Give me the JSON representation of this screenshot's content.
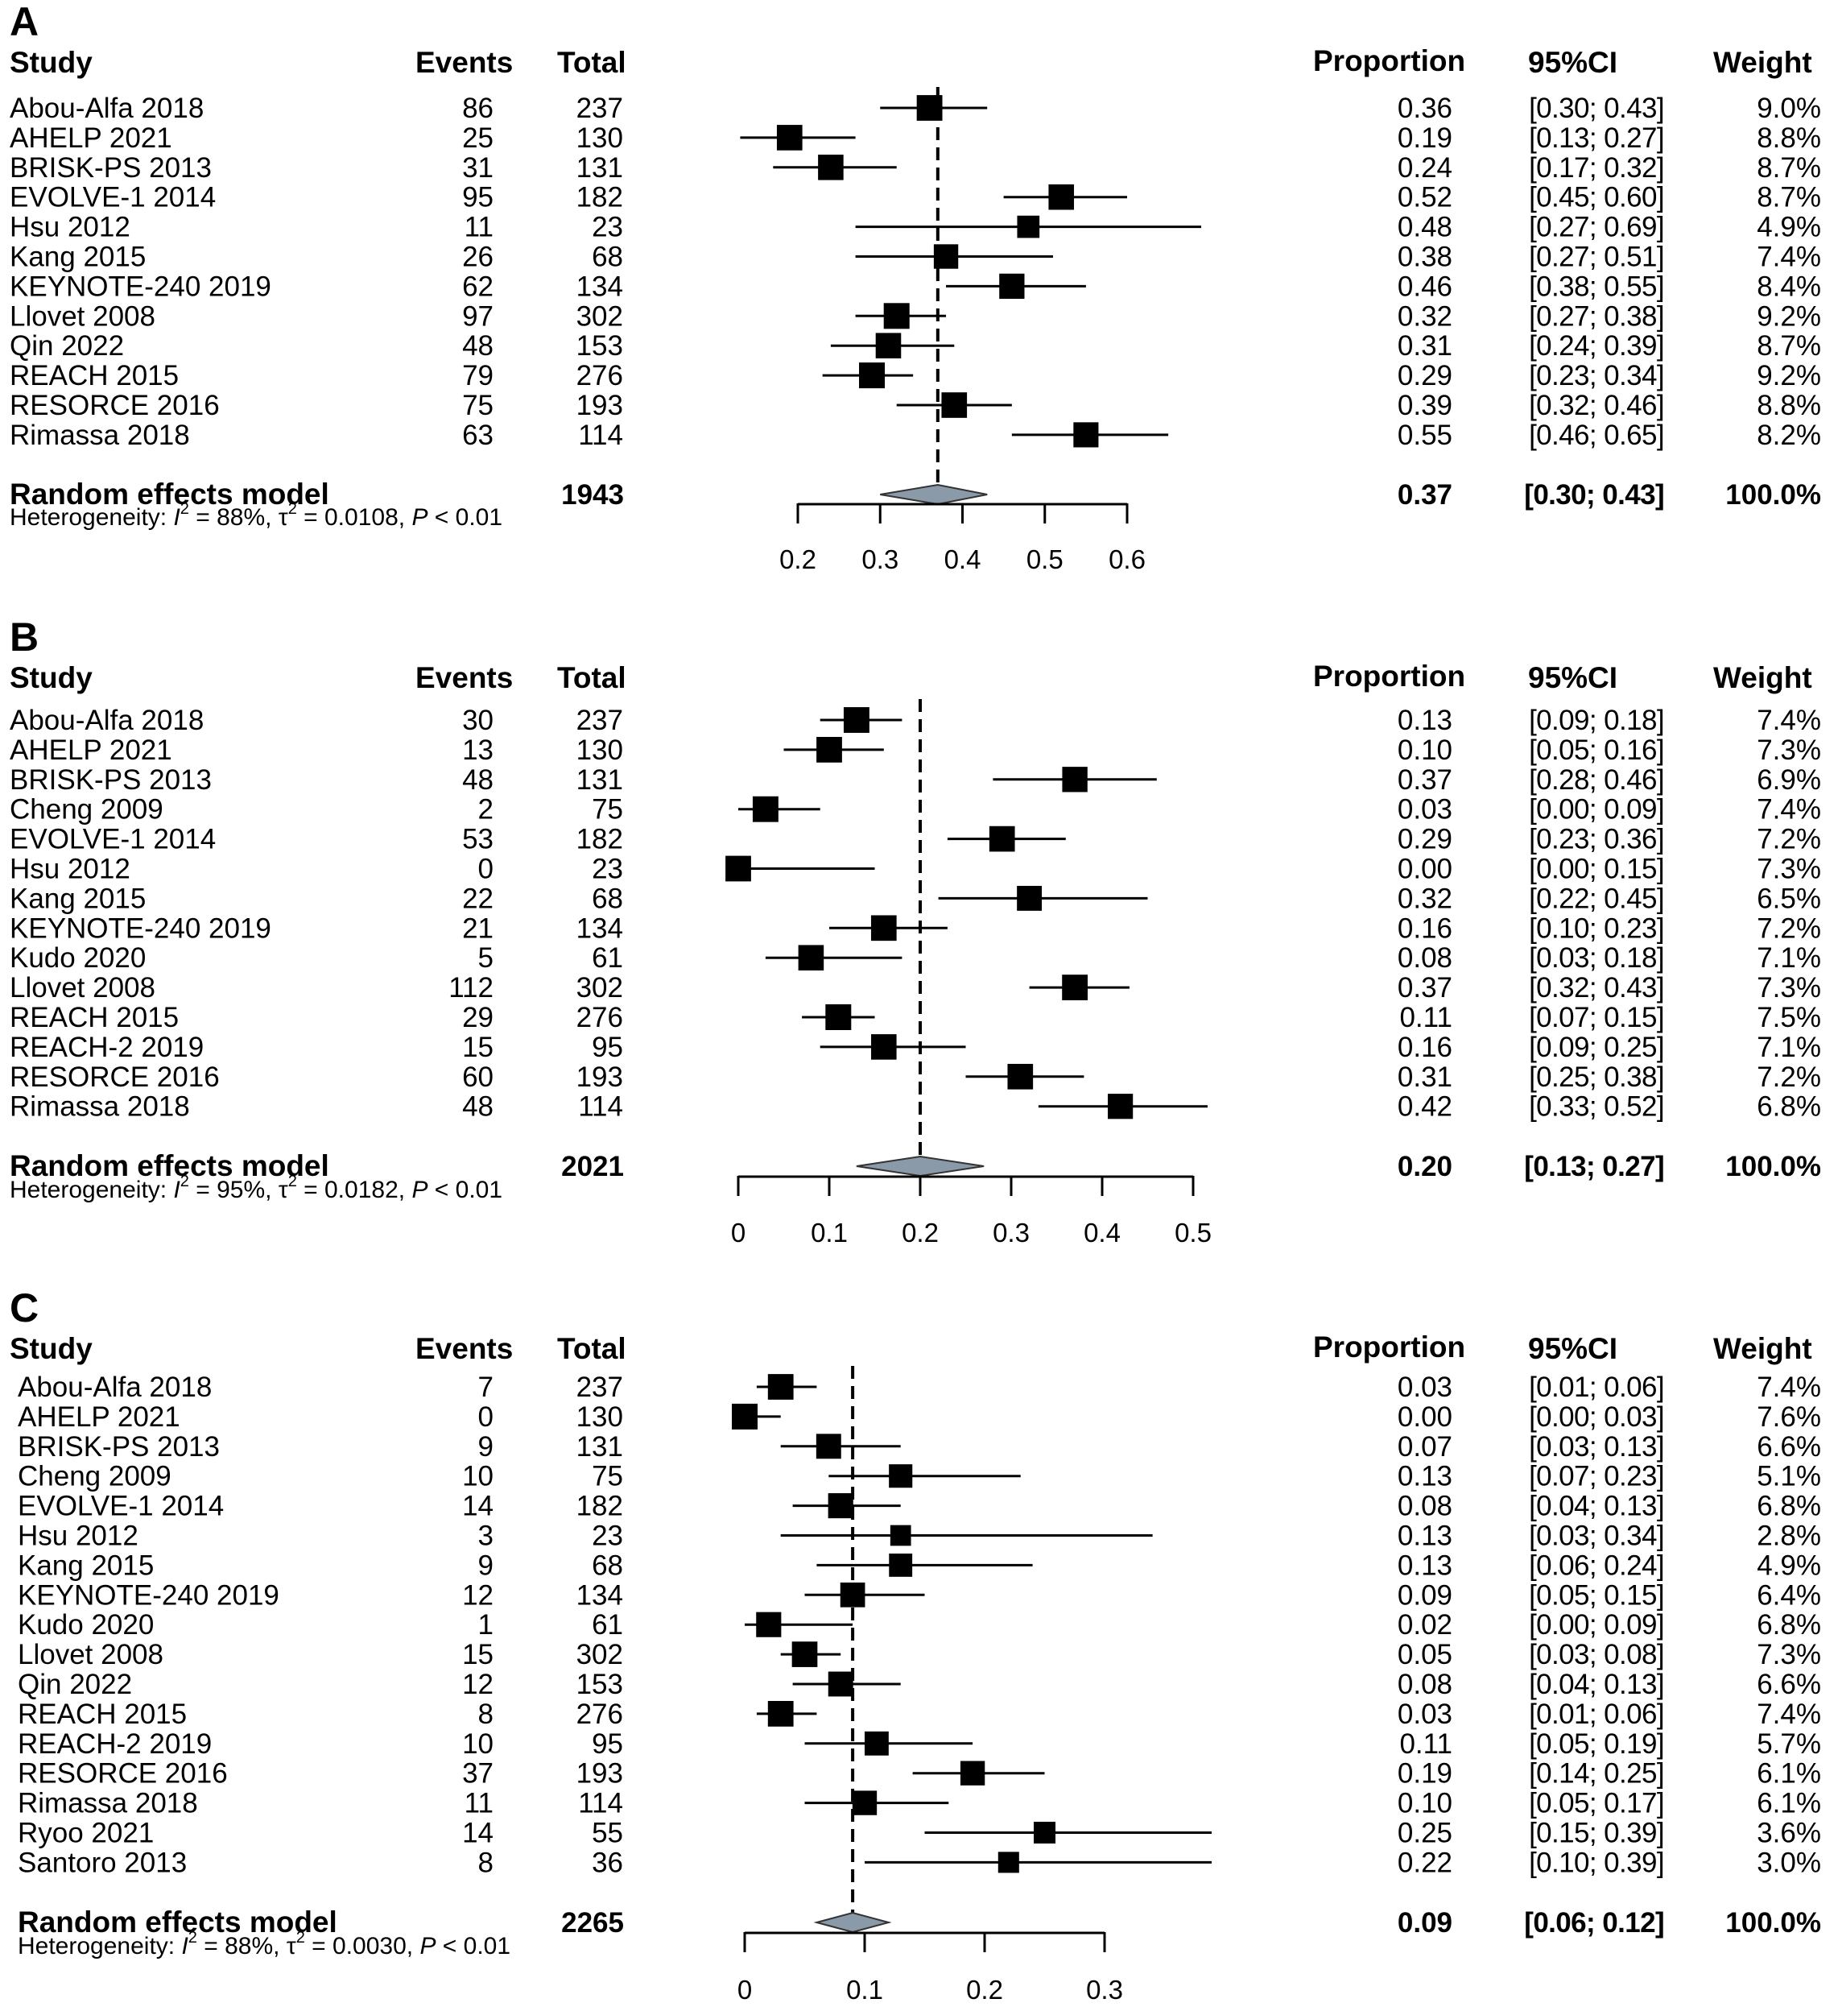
{
  "headers": {
    "study": "Study",
    "events": "Events",
    "total": "Total",
    "proportion": "Proportion",
    "ci": "95%CI",
    "weight": "Weight"
  },
  "chart_data": [
    {
      "type": "forest",
      "panel_label": "A",
      "x_ticks": [
        0.2,
        0.3,
        0.4,
        0.5,
        0.6
      ],
      "x_tick_labels": [
        "0.2",
        "0.3",
        "0.4",
        "0.5",
        "0.6"
      ],
      "xlim": [
        0.2,
        0.6
      ],
      "pooled_reference": 0.37,
      "studies": [
        {
          "study": "Abou-Alfa 2018",
          "events": "86",
          "total": "237",
          "proportion": 0.36,
          "lower": 0.3,
          "upper": 0.43,
          "prop_label": "0.36",
          "ci_label": "[0.30; 0.43]",
          "weight": 9.0,
          "weight_label": "9.0%"
        },
        {
          "study": "AHELP 2021",
          "events": "25",
          "total": "130",
          "proportion": 0.19,
          "lower": 0.13,
          "upper": 0.27,
          "prop_label": "0.19",
          "ci_label": "[0.13; 0.27]",
          "weight": 8.8,
          "weight_label": "8.8%"
        },
        {
          "study": "BRISK-PS 2013",
          "events": "31",
          "total": "131",
          "proportion": 0.24,
          "lower": 0.17,
          "upper": 0.32,
          "prop_label": "0.24",
          "ci_label": "[0.17; 0.32]",
          "weight": 8.7,
          "weight_label": "8.7%"
        },
        {
          "study": "EVOLVE-1 2014",
          "events": "95",
          "total": "182",
          "proportion": 0.52,
          "lower": 0.45,
          "upper": 0.6,
          "prop_label": "0.52",
          "ci_label": "[0.45; 0.60]",
          "weight": 8.7,
          "weight_label": "8.7%"
        },
        {
          "study": "Hsu 2012",
          "events": "11",
          "total": "23",
          "proportion": 0.48,
          "lower": 0.27,
          "upper": 0.69,
          "prop_label": "0.48",
          "ci_label": "[0.27; 0.69]",
          "weight": 4.9,
          "weight_label": "4.9%"
        },
        {
          "study": "Kang 2015",
          "events": "26",
          "total": "68",
          "proportion": 0.38,
          "lower": 0.27,
          "upper": 0.51,
          "prop_label": "0.38",
          "ci_label": "[0.27; 0.51]",
          "weight": 7.4,
          "weight_label": "7.4%"
        },
        {
          "study": "KEYNOTE-240 2019",
          "events": "62",
          "total": "134",
          "proportion": 0.46,
          "lower": 0.38,
          "upper": 0.55,
          "prop_label": "0.46",
          "ci_label": "[0.38; 0.55]",
          "weight": 8.4,
          "weight_label": "8.4%"
        },
        {
          "study": "Llovet 2008",
          "events": "97",
          "total": "302",
          "proportion": 0.32,
          "lower": 0.27,
          "upper": 0.38,
          "prop_label": "0.32",
          "ci_label": "[0.27; 0.38]",
          "weight": 9.2,
          "weight_label": "9.2%"
        },
        {
          "study": "Qin 2022",
          "events": "48",
          "total": "153",
          "proportion": 0.31,
          "lower": 0.24,
          "upper": 0.39,
          "prop_label": "0.31",
          "ci_label": "[0.24; 0.39]",
          "weight": 8.7,
          "weight_label": "8.7%"
        },
        {
          "study": "REACH 2015",
          "events": "79",
          "total": "276",
          "proportion": 0.29,
          "lower": 0.23,
          "upper": 0.34,
          "prop_label": "0.29",
          "ci_label": "[0.23; 0.34]",
          "weight": 9.2,
          "weight_label": "9.2%"
        },
        {
          "study": "RESORCE 2016",
          "events": "75",
          "total": "193",
          "proportion": 0.39,
          "lower": 0.32,
          "upper": 0.46,
          "prop_label": "0.39",
          "ci_label": "[0.32; 0.46]",
          "weight": 8.8,
          "weight_label": "8.8%"
        },
        {
          "study": "Rimassa 2018",
          "events": "63",
          "total": "114",
          "proportion": 0.55,
          "lower": 0.46,
          "upper": 0.65,
          "prop_label": "0.55",
          "ci_label": "[0.46; 0.65]",
          "weight": 8.2,
          "weight_label": "8.2%"
        }
      ],
      "summary": {
        "label": "Random effects model",
        "total": "1943",
        "proportion": 0.37,
        "lower": 0.3,
        "upper": 0.43,
        "prop_label": "0.37",
        "ci_label": "[0.30; 0.43]",
        "weight_label": "100.0%",
        "het_prefix": "Heterogeneity: ",
        "i2_symbol": "I",
        "i2_sup": "2",
        "i2_value": " = 88%, ",
        "tau_symbol": "τ",
        "tau_sup": "2",
        "tau_value": " = 0.0108, ",
        "p_symbol": "P",
        "p_value": " < 0.01"
      }
    },
    {
      "type": "forest",
      "panel_label": "B",
      "x_ticks": [
        0,
        0.1,
        0.2,
        0.3,
        0.4,
        0.5
      ],
      "x_tick_labels": [
        "0",
        "0.1",
        "0.2",
        "0.3",
        "0.4",
        "0.5"
      ],
      "xlim": [
        0,
        0.5
      ],
      "pooled_reference": 0.2,
      "studies": [
        {
          "study": "Abou-Alfa 2018",
          "events": "30",
          "total": "237",
          "proportion": 0.13,
          "lower": 0.09,
          "upper": 0.18,
          "prop_label": "0.13",
          "ci_label": "[0.09; 0.18]",
          "weight": 7.4,
          "weight_label": "7.4%"
        },
        {
          "study": "AHELP 2021",
          "events": "13",
          "total": "130",
          "proportion": 0.1,
          "lower": 0.05,
          "upper": 0.16,
          "prop_label": "0.10",
          "ci_label": "[0.05; 0.16]",
          "weight": 7.3,
          "weight_label": "7.3%"
        },
        {
          "study": "BRISK-PS 2013",
          "events": "48",
          "total": "131",
          "proportion": 0.37,
          "lower": 0.28,
          "upper": 0.46,
          "prop_label": "0.37",
          "ci_label": "[0.28; 0.46]",
          "weight": 6.9,
          "weight_label": "6.9%"
        },
        {
          "study": "Cheng 2009",
          "events": "2",
          "total": "75",
          "proportion": 0.03,
          "lower": 0.0,
          "upper": 0.09,
          "prop_label": "0.03",
          "ci_label": "[0.00; 0.09]",
          "weight": 7.4,
          "weight_label": "7.4%"
        },
        {
          "study": "EVOLVE-1 2014",
          "events": "53",
          "total": "182",
          "proportion": 0.29,
          "lower": 0.23,
          "upper": 0.36,
          "prop_label": "0.29",
          "ci_label": "[0.23; 0.36]",
          "weight": 7.2,
          "weight_label": "7.2%"
        },
        {
          "study": "Hsu 2012",
          "events": "0",
          "total": "23",
          "proportion": 0.0,
          "lower": 0.0,
          "upper": 0.15,
          "prop_label": "0.00",
          "ci_label": "[0.00; 0.15]",
          "weight": 7.3,
          "weight_label": "7.3%"
        },
        {
          "study": "Kang 2015",
          "events": "22",
          "total": "68",
          "proportion": 0.32,
          "lower": 0.22,
          "upper": 0.45,
          "prop_label": "0.32",
          "ci_label": "[0.22; 0.45]",
          "weight": 6.5,
          "weight_label": "6.5%"
        },
        {
          "study": "KEYNOTE-240 2019",
          "events": "21",
          "total": "134",
          "proportion": 0.16,
          "lower": 0.1,
          "upper": 0.23,
          "prop_label": "0.16",
          "ci_label": "[0.10; 0.23]",
          "weight": 7.2,
          "weight_label": "7.2%"
        },
        {
          "study": "Kudo 2020",
          "events": "5",
          "total": "61",
          "proportion": 0.08,
          "lower": 0.03,
          "upper": 0.18,
          "prop_label": "0.08",
          "ci_label": "[0.03; 0.18]",
          "weight": 7.1,
          "weight_label": "7.1%"
        },
        {
          "study": "Llovet 2008",
          "events": "112",
          "total": "302",
          "proportion": 0.37,
          "lower": 0.32,
          "upper": 0.43,
          "prop_label": "0.37",
          "ci_label": "[0.32; 0.43]",
          "weight": 7.3,
          "weight_label": "7.3%"
        },
        {
          "study": "REACH 2015",
          "events": "29",
          "total": "276",
          "proportion": 0.11,
          "lower": 0.07,
          "upper": 0.15,
          "prop_label": "0.11",
          "ci_label": "[0.07; 0.15]",
          "weight": 7.5,
          "weight_label": "7.5%"
        },
        {
          "study": "REACH-2 2019",
          "events": "15",
          "total": "95",
          "proportion": 0.16,
          "lower": 0.09,
          "upper": 0.25,
          "prop_label": "0.16",
          "ci_label": "[0.09; 0.25]",
          "weight": 7.1,
          "weight_label": "7.1%"
        },
        {
          "study": "RESORCE 2016",
          "events": "60",
          "total": "193",
          "proportion": 0.31,
          "lower": 0.25,
          "upper": 0.38,
          "prop_label": "0.31",
          "ci_label": "[0.25; 0.38]",
          "weight": 7.2,
          "weight_label": "7.2%"
        },
        {
          "study": "Rimassa 2018",
          "events": "48",
          "total": "114",
          "proportion": 0.42,
          "lower": 0.33,
          "upper": 0.52,
          "prop_label": "0.42",
          "ci_label": "[0.33; 0.52]",
          "weight": 6.8,
          "weight_label": "6.8%"
        }
      ],
      "summary": {
        "label": "Random effects model",
        "total": "2021",
        "proportion": 0.2,
        "lower": 0.13,
        "upper": 0.27,
        "prop_label": "0.20",
        "ci_label": "[0.13; 0.27]",
        "weight_label": "100.0%",
        "het_prefix": "Heterogeneity: ",
        "i2_symbol": "I",
        "i2_sup": "2",
        "i2_value": " = 95%, ",
        "tau_symbol": "τ",
        "tau_sup": "2",
        "tau_value": " = 0.0182, ",
        "p_symbol": "P",
        "p_value": " < 0.01"
      }
    },
    {
      "type": "forest",
      "panel_label": "C",
      "x_ticks": [
        0,
        0.1,
        0.2,
        0.3
      ],
      "x_tick_labels": [
        "0",
        "0.1",
        "0.2",
        "0.3"
      ],
      "xlim": [
        0,
        0.3
      ],
      "pooled_reference": 0.09,
      "studies": [
        {
          "study": "Abou-Alfa 2018",
          "events": "7",
          "total": "237",
          "proportion": 0.03,
          "lower": 0.01,
          "upper": 0.06,
          "prop_label": "0.03",
          "ci_label": "[0.01; 0.06]",
          "weight": 7.4,
          "weight_label": "7.4%"
        },
        {
          "study": "AHELP 2021",
          "events": "0",
          "total": "130",
          "proportion": 0.0,
          "lower": 0.0,
          "upper": 0.03,
          "prop_label": "0.00",
          "ci_label": "[0.00; 0.03]",
          "weight": 7.6,
          "weight_label": "7.6%"
        },
        {
          "study": "BRISK-PS 2013",
          "events": "9",
          "total": "131",
          "proportion": 0.07,
          "lower": 0.03,
          "upper": 0.13,
          "prop_label": "0.07",
          "ci_label": "[0.03; 0.13]",
          "weight": 6.6,
          "weight_label": "6.6%"
        },
        {
          "study": "Cheng 2009",
          "events": "10",
          "total": "75",
          "proportion": 0.13,
          "lower": 0.07,
          "upper": 0.23,
          "prop_label": "0.13",
          "ci_label": "[0.07; 0.23]",
          "weight": 5.1,
          "weight_label": "5.1%"
        },
        {
          "study": "EVOLVE-1 2014",
          "events": "14",
          "total": "182",
          "proportion": 0.08,
          "lower": 0.04,
          "upper": 0.13,
          "prop_label": "0.08",
          "ci_label": "[0.04; 0.13]",
          "weight": 6.8,
          "weight_label": "6.8%"
        },
        {
          "study": "Hsu 2012",
          "events": "3",
          "total": "23",
          "proportion": 0.13,
          "lower": 0.03,
          "upper": 0.34,
          "prop_label": "0.13",
          "ci_label": "[0.03; 0.34]",
          "weight": 2.8,
          "weight_label": "2.8%"
        },
        {
          "study": "Kang 2015",
          "events": "9",
          "total": "68",
          "proportion": 0.13,
          "lower": 0.06,
          "upper": 0.24,
          "prop_label": "0.13",
          "ci_label": "[0.06; 0.24]",
          "weight": 4.9,
          "weight_label": "4.9%"
        },
        {
          "study": "KEYNOTE-240 2019",
          "events": "12",
          "total": "134",
          "proportion": 0.09,
          "lower": 0.05,
          "upper": 0.15,
          "prop_label": "0.09",
          "ci_label": "[0.05; 0.15]",
          "weight": 6.4,
          "weight_label": "6.4%"
        },
        {
          "study": "Kudo 2020",
          "events": "1",
          "total": "61",
          "proportion": 0.02,
          "lower": 0.0,
          "upper": 0.09,
          "prop_label": "0.02",
          "ci_label": "[0.00; 0.09]",
          "weight": 6.8,
          "weight_label": "6.8%"
        },
        {
          "study": "Llovet 2008",
          "events": "15",
          "total": "302",
          "proportion": 0.05,
          "lower": 0.03,
          "upper": 0.08,
          "prop_label": "0.05",
          "ci_label": "[0.03; 0.08]",
          "weight": 7.3,
          "weight_label": "7.3%"
        },
        {
          "study": "Qin 2022",
          "events": "12",
          "total": "153",
          "proportion": 0.08,
          "lower": 0.04,
          "upper": 0.13,
          "prop_label": "0.08",
          "ci_label": "[0.04; 0.13]",
          "weight": 6.6,
          "weight_label": "6.6%"
        },
        {
          "study": "REACH 2015",
          "events": "8",
          "total": "276",
          "proportion": 0.03,
          "lower": 0.01,
          "upper": 0.06,
          "prop_label": "0.03",
          "ci_label": "[0.01; 0.06]",
          "weight": 7.4,
          "weight_label": "7.4%"
        },
        {
          "study": "REACH-2 2019",
          "events": "10",
          "total": "95",
          "proportion": 0.11,
          "lower": 0.05,
          "upper": 0.19,
          "prop_label": "0.11",
          "ci_label": "[0.05; 0.19]",
          "weight": 5.7,
          "weight_label": "5.7%"
        },
        {
          "study": "RESORCE 2016",
          "events": "37",
          "total": "193",
          "proportion": 0.19,
          "lower": 0.14,
          "upper": 0.25,
          "prop_label": "0.19",
          "ci_label": "[0.14; 0.25]",
          "weight": 6.1,
          "weight_label": "6.1%"
        },
        {
          "study": "Rimassa 2018",
          "events": "11",
          "total": "114",
          "proportion": 0.1,
          "lower": 0.05,
          "upper": 0.17,
          "prop_label": "0.10",
          "ci_label": "[0.05; 0.17]",
          "weight": 6.1,
          "weight_label": "6.1%"
        },
        {
          "study": "Ryoo 2021",
          "events": "14",
          "total": "55",
          "proportion": 0.25,
          "lower": 0.15,
          "upper": 0.39,
          "prop_label": "0.25",
          "ci_label": "[0.15; 0.39]",
          "weight": 3.6,
          "weight_label": "3.6%"
        },
        {
          "study": "Santoro 2013",
          "events": "8",
          "total": "36",
          "proportion": 0.22,
          "lower": 0.1,
          "upper": 0.39,
          "prop_label": "0.22",
          "ci_label": "[0.10; 0.39]",
          "weight": 3.0,
          "weight_label": "3.0%"
        }
      ],
      "summary": {
        "label": "Random effects model",
        "total": "2265",
        "proportion": 0.09,
        "lower": 0.06,
        "upper": 0.12,
        "prop_label": "0.09",
        "ci_label": "[0.06; 0.12]",
        "weight_label": "100.0%",
        "het_prefix": "Heterogeneity: ",
        "i2_symbol": "I",
        "i2_sup": "2",
        "i2_value": " = 88%, ",
        "tau_symbol": "τ",
        "tau_sup": "2",
        "tau_value": " = 0.0030, ",
        "p_symbol": "P",
        "p_value": " < 0.01"
      }
    }
  ]
}
